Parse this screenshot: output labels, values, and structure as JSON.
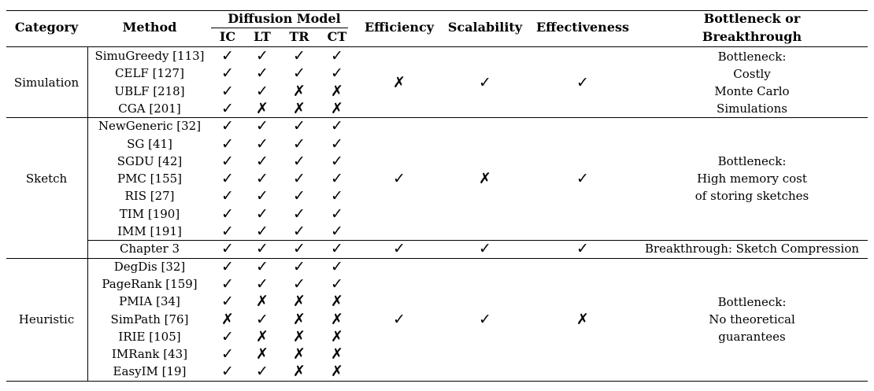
{
  "headers": {
    "category": "Category",
    "method": "Method",
    "diffusion_model": "Diffusion Model",
    "sub": [
      "IC",
      "LT",
      "TR",
      "CT"
    ],
    "efficiency": "Efficiency",
    "scalability": "Scalability",
    "effectiveness": "Effectiveness",
    "bottleneck_line1": "Bottleneck or",
    "bottleneck_line2": "Breakthrough"
  },
  "marks": {
    "yes": "✓",
    "no": "✗"
  },
  "groups": [
    {
      "category": "Simulation",
      "rows": [
        {
          "method": "SimuGreedy [113]",
          "models": [
            "yes",
            "yes",
            "yes",
            "yes"
          ]
        },
        {
          "method": "CELF [127]",
          "models": [
            "yes",
            "yes",
            "yes",
            "yes"
          ]
        },
        {
          "method": "UBLF [218]",
          "models": [
            "yes",
            "yes",
            "no",
            "no"
          ]
        },
        {
          "method": "CGA [201]",
          "models": [
            "yes",
            "no",
            "no",
            "no"
          ]
        }
      ],
      "efficiency": "no",
      "scalability": "yes",
      "effectiveness": "yes",
      "note": [
        "Bottleneck:",
        "Costly",
        "Monte Carlo",
        "Simulations"
      ]
    },
    {
      "category": "Sketch",
      "rows": [
        {
          "method": "NewGeneric [32]",
          "models": [
            "yes",
            "yes",
            "yes",
            "yes"
          ]
        },
        {
          "method": "SG [41]",
          "models": [
            "yes",
            "yes",
            "yes",
            "yes"
          ]
        },
        {
          "method": "SGDU [42]",
          "models": [
            "yes",
            "yes",
            "yes",
            "yes"
          ]
        },
        {
          "method": "PMC [155]",
          "models": [
            "yes",
            "yes",
            "yes",
            "yes"
          ]
        },
        {
          "method": "RIS [27]",
          "models": [
            "yes",
            "yes",
            "yes",
            "yes"
          ]
        },
        {
          "method": "TIM [190]",
          "models": [
            "yes",
            "yes",
            "yes",
            "yes"
          ]
        },
        {
          "method": "IMM [191]",
          "models": [
            "yes",
            "yes",
            "yes",
            "yes"
          ]
        }
      ],
      "efficiency": "yes",
      "scalability": "no",
      "effectiveness": "yes",
      "note": [
        "Bottleneck:",
        "High memory cost",
        "of storing sketches"
      ]
    },
    {
      "category": "",
      "rows": [
        {
          "method": "Chapter 3",
          "models": [
            "yes",
            "yes",
            "yes",
            "yes"
          ]
        }
      ],
      "efficiency": "yes",
      "scalability": "yes",
      "effectiveness": "yes",
      "note": [
        "Breakthrough: Sketch Compression"
      ]
    },
    {
      "category": "Heuristic",
      "rows": [
        {
          "method": "DegDis [32]",
          "models": [
            "yes",
            "yes",
            "yes",
            "yes"
          ]
        },
        {
          "method": "PageRank [159]",
          "models": [
            "yes",
            "yes",
            "yes",
            "yes"
          ]
        },
        {
          "method": "PMIA [34]",
          "models": [
            "yes",
            "no",
            "no",
            "no"
          ]
        },
        {
          "method": "SimPath [76]",
          "models": [
            "no",
            "yes",
            "no",
            "no"
          ]
        },
        {
          "method": "IRIE [105]",
          "models": [
            "yes",
            "no",
            "no",
            "no"
          ]
        },
        {
          "method": "IMRank [43]",
          "models": [
            "yes",
            "no",
            "no",
            "no"
          ]
        },
        {
          "method": "EasyIM [19]",
          "models": [
            "yes",
            "yes",
            "no",
            "no"
          ]
        }
      ],
      "efficiency": "yes",
      "scalability": "yes",
      "effectiveness": "no",
      "note": [
        "Bottleneck:",
        "No theoretical",
        "guarantees"
      ]
    }
  ]
}
